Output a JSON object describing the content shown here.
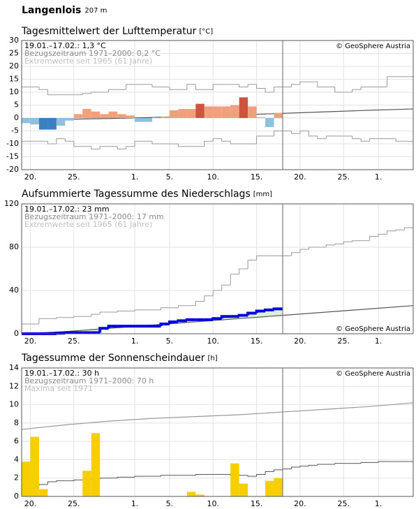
{
  "header": {
    "title": "Langenlois",
    "elevation": "207 m"
  },
  "chart_data": [
    {
      "type": "bar",
      "title": "Tagesmittelwert der Lufttemperatur",
      "unit": "[°C]",
      "annotations": [
        {
          "text": "19.01.–17.02.: 1,3 °C",
          "color": "#000000"
        },
        {
          "text": "Bezugszeitraum 1971–2000: 0,2 °C",
          "color": "#888888"
        },
        {
          "text": "Extremwerte seit 1965 (61 Jahre)",
          "color": "#c0c0c0"
        }
      ],
      "source": "© GeoSphere Austria",
      "source_position": "top",
      "xlim": [
        0,
        45
      ],
      "xticks": [
        {
          "value": 1,
          "label": "20."
        },
        {
          "value": 6,
          "label": "25."
        },
        {
          "value": 13,
          "label": "1."
        },
        {
          "value": 17,
          "label": "5."
        },
        {
          "value": 22,
          "label": "10."
        },
        {
          "value": 27,
          "label": "15."
        },
        {
          "value": 32,
          "label": "20."
        },
        {
          "value": 37,
          "label": "25."
        },
        {
          "value": 41,
          "label": "1."
        }
      ],
      "ylim": [
        -20,
        30
      ],
      "yticks": [
        -20,
        -15,
        -10,
        -5,
        0,
        5,
        10,
        15,
        20,
        25,
        30
      ],
      "grid": true,
      "marker_x": 30,
      "bars": {
        "values": [
          -2,
          -2.5,
          -4.5,
          -4.5,
          -3,
          -1,
          1.5,
          3.5,
          2.5,
          1.5,
          2.5,
          1.5,
          1,
          -1.5,
          -1.5,
          0.2,
          0.5,
          3,
          3.5,
          3.5,
          5.5,
          4.5,
          4.5,
          4.5,
          5,
          8,
          4.5,
          0.3,
          -3.5,
          2
        ],
        "colors": [
          "#8ec1e0",
          "#8ec1e0",
          "#3b7fc0",
          "#3b7fc0",
          "#8ec1e0",
          "#8ec1e0",
          "#f0a07f",
          "#f0a07f",
          "#f0a07f",
          "#f0a07f",
          "#f0a07f",
          "#f0a07f",
          "#f0a07f",
          "#8ec1e0",
          "#8ec1e0",
          "#f0a07f",
          "#f0a07f",
          "#f0a07f",
          "#f0a07f",
          "#f0a07f",
          "#d0533f",
          "#f0a07f",
          "#f0a07f",
          "#f0a07f",
          "#f0a07f",
          "#d0533f",
          "#f0a07f",
          "#f0a07f",
          "#8ec1e0",
          "#f0a07f"
        ]
      },
      "series": [
        {
          "style": "step",
          "color": "#999999",
          "values": [
            12,
            12,
            11,
            9,
            9,
            9,
            9,
            9.5,
            10,
            10,
            11,
            11,
            13,
            13,
            13,
            12,
            12,
            11,
            11,
            13,
            11,
            11,
            13,
            13,
            13,
            12,
            13,
            11.5,
            10,
            12,
            12,
            13,
            14,
            14,
            12,
            12,
            10,
            10,
            11,
            12,
            12,
            12,
            16,
            16,
            16
          ]
        },
        {
          "style": "step",
          "color": "#999999",
          "values": [
            -9,
            -9,
            -9,
            -10,
            -8,
            -9,
            -11,
            -11,
            -12,
            -11,
            -11,
            -12,
            -11,
            -9,
            -9,
            -10,
            -10,
            -10,
            -11,
            -11,
            -11,
            -9,
            -8,
            -9,
            -10,
            -10,
            -10,
            -7,
            -7,
            -5,
            -5,
            -6,
            -5,
            -7,
            -8,
            -7,
            -7,
            -7,
            -8,
            -9,
            -8,
            -8,
            -8,
            -9,
            -9
          ]
        },
        {
          "style": "line",
          "color": "#555555",
          "x": [
            0,
            5,
            10,
            15,
            20,
            25,
            30,
            35,
            40,
            45
          ],
          "values": [
            -0.8,
            -0.5,
            -0.2,
            0.2,
            0.8,
            1.2,
            1.8,
            2.4,
            3,
            3.5
          ]
        }
      ]
    },
    {
      "type": "step",
      "title": "Aufsummierte Tagessumme des Niederschlags",
      "unit": "[mm]",
      "annotations": [
        {
          "text": "19.01.–17.02.: 23 mm",
          "color": "#000000"
        },
        {
          "text": "Bezugszeitraum 1971–2000: 17 mm",
          "color": "#888888"
        },
        {
          "text": "Extremwerte seit 1965 (61 Jahre)",
          "color": "#c0c0c0"
        }
      ],
      "source": "© GeoSphere Austria",
      "source_position": "bottom",
      "xlim": [
        0,
        45
      ],
      "xticks": [
        {
          "value": 1,
          "label": "20."
        },
        {
          "value": 6,
          "label": "25."
        },
        {
          "value": 13,
          "label": "1."
        },
        {
          "value": 17,
          "label": "5."
        },
        {
          "value": 22,
          "label": "10."
        },
        {
          "value": 27,
          "label": "15."
        },
        {
          "value": 32,
          "label": "20."
        },
        {
          "value": 37,
          "label": "25."
        },
        {
          "value": 41,
          "label": "1."
        }
      ],
      "ylim": [
        0,
        120
      ],
      "yticks": [
        0,
        40,
        80,
        120
      ],
      "grid": true,
      "marker_x": 30,
      "series": [
        {
          "style": "step",
          "color": "#999999",
          "values": [
            9,
            9,
            14,
            14,
            15,
            15,
            16,
            16,
            18,
            20,
            20,
            21,
            21,
            22,
            22,
            22,
            24,
            24,
            26,
            26,
            30,
            35,
            40,
            45,
            55,
            60,
            68,
            72,
            72,
            72,
            72,
            75,
            78,
            80,
            80,
            82,
            83,
            85,
            86,
            86,
            90,
            92,
            95,
            96,
            98
          ]
        },
        {
          "style": "line",
          "color": "#555555",
          "x": [
            0,
            5,
            10,
            15,
            20,
            25,
            30,
            35,
            40,
            45
          ],
          "values": [
            0,
            2,
            5,
            8,
            11,
            14,
            17,
            20,
            23,
            26
          ]
        },
        {
          "style": "step",
          "color": "#0000dd",
          "width": 4,
          "fill": "#dcefdc",
          "values": [
            0,
            0,
            0,
            0,
            0.5,
            1,
            1,
            1,
            1,
            5,
            7,
            7,
            7,
            7,
            7,
            7,
            9,
            11,
            12,
            13,
            13,
            13,
            14,
            16,
            16,
            17,
            19,
            21,
            22,
            23
          ]
        }
      ]
    },
    {
      "type": "bar",
      "title": "Tagessumme der Sonnenscheindauer",
      "unit": "[h]",
      "annotations": [
        {
          "text": "19.01.–17.02.: 30 h",
          "color": "#000000"
        },
        {
          "text": "Bezugszeitraum 1971–2000: 70 h",
          "color": "#888888"
        },
        {
          "text": "Maxima seit 1971",
          "color": "#c0c0c0"
        }
      ],
      "source": "© GeoSphere Austria",
      "source_position": "top",
      "xlim": [
        0,
        45
      ],
      "xticks": [
        {
          "value": 1,
          "label": "20."
        },
        {
          "value": 6,
          "label": "25."
        },
        {
          "value": 13,
          "label": "1."
        },
        {
          "value": 17,
          "label": "5."
        },
        {
          "value": 22,
          "label": "10."
        },
        {
          "value": 27,
          "label": "15."
        },
        {
          "value": 32,
          "label": "20."
        },
        {
          "value": 37,
          "label": "25."
        },
        {
          "value": 41,
          "label": "1."
        }
      ],
      "ylim": [
        0,
        14
      ],
      "yticks": [
        0,
        2,
        4,
        6,
        8,
        10,
        12,
        14
      ],
      "grid": true,
      "marker_x": 30,
      "bars": {
        "color": "#f7cf00",
        "values": [
          3.8,
          6.5,
          0.8,
          0,
          0,
          0,
          0,
          2.8,
          6.9,
          0,
          0,
          0,
          0,
          0,
          0,
          0,
          0,
          0,
          0,
          0.5,
          0.2,
          0,
          0,
          0,
          3.6,
          1.4,
          0,
          0,
          1.7,
          2
        ]
      },
      "series": [
        {
          "style": "line",
          "color": "#999999",
          "x": [
            0,
            5,
            10,
            15,
            20,
            25,
            30,
            35,
            40,
            45
          ],
          "values": [
            7.3,
            7.8,
            8.2,
            8.5,
            8.7,
            8.9,
            9.2,
            9.5,
            9.8,
            10.2
          ]
        },
        {
          "style": "step",
          "color": "#555555",
          "values": [
            1.2,
            1.2,
            1.3,
            1.6,
            1.7,
            1.7,
            1.8,
            1.8,
            1.9,
            2,
            2,
            2.1,
            2.1,
            2.2,
            2.2,
            2.2,
            2.3,
            2.3,
            2.3,
            2.3,
            2.4,
            2.4,
            2.4,
            2.4,
            2.3,
            2.3,
            2.2,
            2.4,
            2.7,
            2.9,
            3,
            3.2,
            3.3,
            3.4,
            3.5,
            3.5,
            3.6,
            3.6,
            3.6,
            3.7,
            3.7,
            3.8,
            3.8,
            3.8,
            3.8
          ]
        }
      ]
    }
  ]
}
